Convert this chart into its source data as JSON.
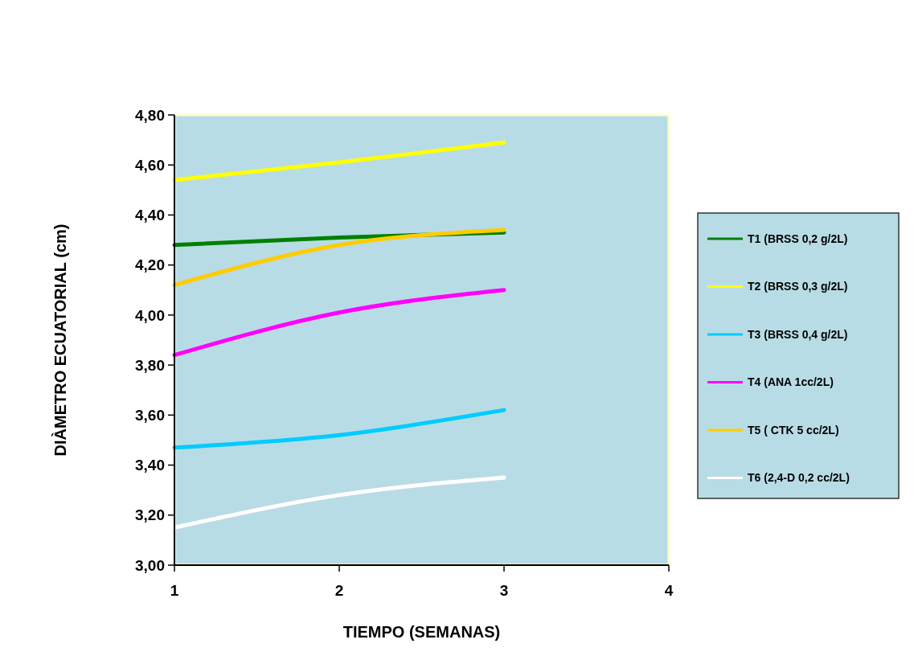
{
  "chart_data": {
    "type": "line",
    "xlabel": "TIEMPO (SEMANAS)",
    "ylabel": "DIÀMETRO ECUATORIAL (cm)",
    "x": [
      1,
      2,
      3
    ],
    "xlim": [
      1,
      4
    ],
    "xticks": [
      1,
      2,
      3,
      4
    ],
    "ylim": [
      3.0,
      4.8
    ],
    "yticks": [
      {
        "value": 3.0,
        "label": "3,00"
      },
      {
        "value": 3.2,
        "label": "3,20"
      },
      {
        "value": 3.4,
        "label": "3,40"
      },
      {
        "value": 3.6,
        "label": "3,60"
      },
      {
        "value": 3.8,
        "label": "3,80"
      },
      {
        "value": 4.0,
        "label": "4,00"
      },
      {
        "value": 4.2,
        "label": "4,20"
      },
      {
        "value": 4.4,
        "label": "4,40"
      },
      {
        "value": 4.6,
        "label": "4,60"
      },
      {
        "value": 4.8,
        "label": "4,80"
      }
    ],
    "legend": "right",
    "grid": false,
    "marker": "none",
    "line_style": "solid",
    "series": [
      {
        "name": "T1 (BRSS 0,2 g/2L)",
        "color": "#008000",
        "values": [
          4.28,
          4.31,
          4.33
        ]
      },
      {
        "name": "T2 (BRSS 0,3 g/2L)",
        "color": "#ffff00",
        "values": [
          4.54,
          4.61,
          4.69
        ]
      },
      {
        "name": "T3 (BRSS 0,4 g/2L)",
        "color": "#00ccff",
        "values": [
          3.47,
          3.52,
          3.62
        ]
      },
      {
        "name": "T4  (ANA 1cc/2L)",
        "color": "#ff00ff",
        "values": [
          3.84,
          4.01,
          4.1
        ]
      },
      {
        "name": "T5 ( CTK 5 cc/2L)",
        "color": "#ffcc00",
        "values": [
          4.12,
          4.28,
          4.34
        ]
      },
      {
        "name": "T6 (2,4-D 0,2 cc/2L)",
        "color": "#ffffff",
        "values": [
          3.15,
          3.28,
          3.35
        ]
      }
    ]
  }
}
